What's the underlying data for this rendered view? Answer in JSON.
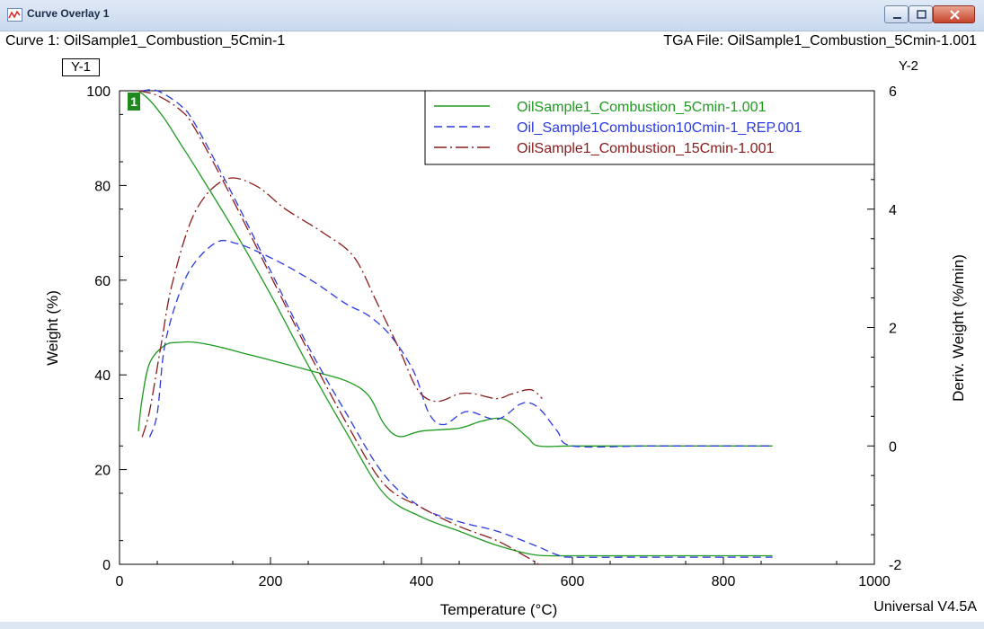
{
  "window": {
    "title": "Curve Overlay 1",
    "icon": "chart-window-icon"
  },
  "header": {
    "curve_label": "Curve 1: OilSample1_Combustion_5Cmin-1",
    "file_label": "TGA File: OilSample1_Combustion_5Cmin-1.001",
    "y1_tag": "Y-1",
    "y2_tag": "Y-2",
    "curve_marker": "1"
  },
  "footer": {
    "version": "Universal V4.5A"
  },
  "chart_data": {
    "type": "line",
    "xlabel": "Temperature (°C)",
    "ylabel": "Weight (%)",
    "y2label": "Deriv. Weight (%/min)",
    "xlim": [
      0,
      1000
    ],
    "ylim": [
      0,
      100
    ],
    "y2lim": [
      -2,
      6
    ],
    "xticks": [
      0,
      200,
      400,
      600,
      800,
      1000
    ],
    "yticks": [
      0,
      20,
      40,
      60,
      80,
      100
    ],
    "y2ticks": [
      -2,
      0,
      2,
      4,
      6
    ],
    "legend_position": "top-right",
    "series": [
      {
        "name": "OilSample1_Combustion_5Cmin-1.001",
        "color": "#1e9a1e",
        "dash": "solid",
        "axis": "y1",
        "x": [
          25,
          40,
          60,
          80,
          100,
          150,
          200,
          250,
          300,
          350,
          400,
          450,
          500,
          550,
          600,
          700,
          800,
          865
        ],
        "y": [
          100,
          98,
          94,
          89,
          84,
          71,
          57,
          42,
          28,
          15,
          10,
          7,
          4,
          2,
          1.8,
          1.8,
          1.8,
          1.8
        ]
      },
      {
        "name": "OilSample1_Combustion_5Cmin-1.001",
        "color": "#1e9a1e",
        "dash": "solid",
        "axis": "y2",
        "x": [
          25,
          30,
          40,
          60,
          80,
          100,
          130,
          160,
          200,
          250,
          300,
          330,
          350,
          370,
          400,
          450,
          480,
          510,
          540,
          555,
          600,
          700,
          800,
          865
        ],
        "y": [
          0.25,
          0.8,
          1.4,
          1.7,
          1.75,
          1.75,
          1.68,
          1.58,
          1.45,
          1.28,
          1.1,
          0.85,
          0.38,
          0.16,
          0.25,
          0.3,
          0.42,
          0.45,
          0.15,
          0,
          0,
          0,
          0,
          0
        ]
      },
      {
        "name": "Oil_Sample1Combustion10Cmin-1_REP.001",
        "color": "#2b39e0",
        "dash": "dashed",
        "axis": "y1",
        "x": [
          30,
          50,
          80,
          100,
          150,
          200,
          250,
          300,
          350,
          400,
          450,
          500,
          550,
          580,
          600,
          700,
          800,
          865
        ],
        "y": [
          100,
          100,
          97,
          93,
          78,
          62,
          46,
          32,
          19,
          12,
          9,
          7,
          4,
          2,
          1.5,
          1.5,
          1.5,
          1.5
        ]
      },
      {
        "name": "Oil_Sample1Combustion10Cmin-1_REP.001",
        "color": "#2b39e0",
        "dash": "dashed",
        "axis": "y2",
        "x": [
          40,
          50,
          60,
          80,
          100,
          130,
          155,
          180,
          220,
          260,
          300,
          330,
          360,
          390,
          410,
          430,
          460,
          500,
          530,
          545,
          560,
          580,
          600,
          700,
          800,
          865
        ],
        "y": [
          0.15,
          0.55,
          1.7,
          2.6,
          3.1,
          3.45,
          3.42,
          3.3,
          3.05,
          2.75,
          2.4,
          2.2,
          1.85,
          1.25,
          0.55,
          0.36,
          0.58,
          0.45,
          0.7,
          0.72,
          0.58,
          0.25,
          0,
          0,
          0,
          0
        ]
      },
      {
        "name": "OilSample1_Combustion_15Cmin-1.001",
        "color": "#8b1a1a",
        "dash": "dashdot",
        "axis": "y1",
        "x": [
          25,
          50,
          80,
          100,
          150,
          200,
          250,
          300,
          350,
          400,
          450,
          500,
          540,
          555
        ],
        "y": [
          100,
          99,
          96,
          92,
          77,
          61,
          45,
          30,
          17,
          12,
          8,
          5,
          1.5,
          0
        ]
      },
      {
        "name": "OilSample1_Combustion_15Cmin-1.001",
        "color": "#8b1a1a",
        "dash": "dashdot",
        "axis": "y2",
        "x": [
          30,
          40,
          55,
          70,
          100,
          140,
          180,
          220,
          270,
          310,
          340,
          370,
          395,
          420,
          450,
          470,
          500,
          520,
          545,
          560
        ],
        "y": [
          0.15,
          0.6,
          1.7,
          2.75,
          3.95,
          4.5,
          4.4,
          4.0,
          3.6,
          3.2,
          2.45,
          1.65,
          0.95,
          0.75,
          0.88,
          0.88,
          0.8,
          0.88,
          0.95,
          0.8
        ]
      }
    ]
  }
}
